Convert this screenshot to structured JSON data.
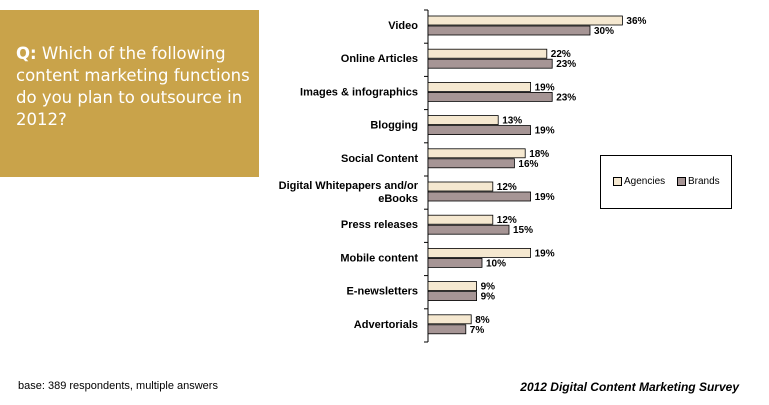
{
  "question": {
    "prefix": "Q:",
    "text": "Which of the following content marketing functions do you plan to outsource in 2012?"
  },
  "footer": {
    "base_note": "base:  389 respondents, multiple answers",
    "survey_title": "2012 Digital Content Marketing Survey"
  },
  "colors": {
    "agencies": "#f5e8d0",
    "brands": "#a69595",
    "question_box": "#c9a34a"
  },
  "chart_data": {
    "type": "bar",
    "orientation": "horizontal",
    "categories": [
      [
        "Video"
      ],
      [
        "Online Articles"
      ],
      [
        "Images & infographics"
      ],
      [
        "Blogging"
      ],
      [
        "Social Content"
      ],
      [
        "Digital Whitepapers and/or",
        "eBooks"
      ],
      [
        "Press releases"
      ],
      [
        "Mobile content"
      ],
      [
        "E-newsletters"
      ],
      [
        "Advertorials"
      ]
    ],
    "series": [
      {
        "name": "Agencies",
        "values": [
          36,
          22,
          19,
          13,
          18,
          12,
          12,
          19,
          9,
          8
        ]
      },
      {
        "name": "Brands",
        "values": [
          30,
          23,
          23,
          19,
          16,
          19,
          15,
          10,
          9,
          7
        ]
      }
    ],
    "value_suffix": "%",
    "xlim": [
      0,
      40
    ],
    "grid": false,
    "legend": {
      "position": "right",
      "labels": [
        "Agencies",
        "Brands"
      ]
    }
  }
}
